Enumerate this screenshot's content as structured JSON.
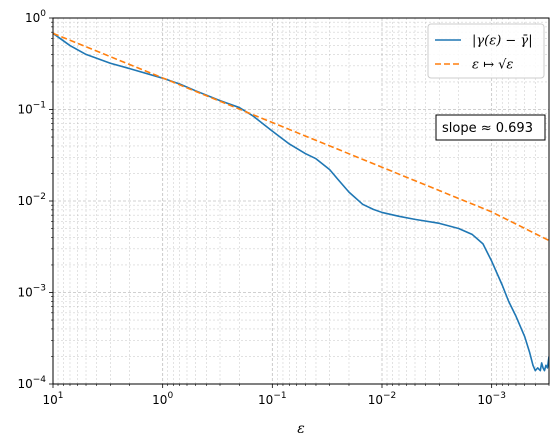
{
  "chart_data": {
    "type": "line",
    "xscale": "log",
    "yscale": "log",
    "x_reversed": true,
    "xlim": [
      10,
      0.0003
    ],
    "ylim": [
      0.0001,
      1
    ],
    "xlabel": "ε",
    "ylabel": "",
    "title": "",
    "grid": true,
    "legend_position": "top-right",
    "x_tick_labels": [
      "10^1",
      "10^0",
      "10^-1",
      "10^-2",
      "10^-3"
    ],
    "y_tick_labels": [
      "10^-4",
      "10^-3",
      "10^-2",
      "10^-1",
      "10^0"
    ],
    "annotation": "slope ≈ 0.693",
    "series": [
      {
        "name": "|γ(ε) − γ̄|",
        "color": "#1f77b4",
        "style": "solid",
        "x": [
          10,
          7,
          5,
          3,
          2,
          1,
          0.7,
          0.5,
          0.3,
          0.2,
          0.15,
          0.1,
          0.07,
          0.05,
          0.04,
          0.03,
          0.025,
          0.02,
          0.015,
          0.012,
          0.01,
          0.007,
          0.005,
          0.003,
          0.002,
          0.0015,
          0.0012,
          0.001,
          0.0008,
          0.0007,
          0.0006,
          0.0005,
          0.00045,
          0.00042,
          0.0004,
          0.00038,
          0.00036,
          0.00035,
          0.00034,
          0.00033,
          0.00032,
          0.00031,
          0.0003
        ],
        "y": [
          0.68,
          0.5,
          0.4,
          0.32,
          0.28,
          0.22,
          0.19,
          0.16,
          0.125,
          0.105,
          0.085,
          0.058,
          0.042,
          0.033,
          0.029,
          0.022,
          0.017,
          0.0125,
          0.0092,
          0.0081,
          0.0075,
          0.0068,
          0.0063,
          0.0057,
          0.005,
          0.0043,
          0.0034,
          0.0022,
          0.0012,
          0.0008,
          0.00055,
          0.00033,
          0.00022,
          0.00016,
          0.00014,
          0.00015,
          0.00014,
          0.00017,
          0.00015,
          0.00014,
          0.00016,
          0.00015,
          0.0002
        ]
      },
      {
        "name": "ε ↦ √ε",
        "color": "#ff7f0e",
        "style": "dashed",
        "x": [
          10,
          1,
          0.1,
          0.01,
          0.001,
          0.0003
        ],
        "y": [
          0.68,
          0.2213,
          0.072,
          0.0234,
          0.0076,
          0.0037
        ]
      }
    ]
  }
}
